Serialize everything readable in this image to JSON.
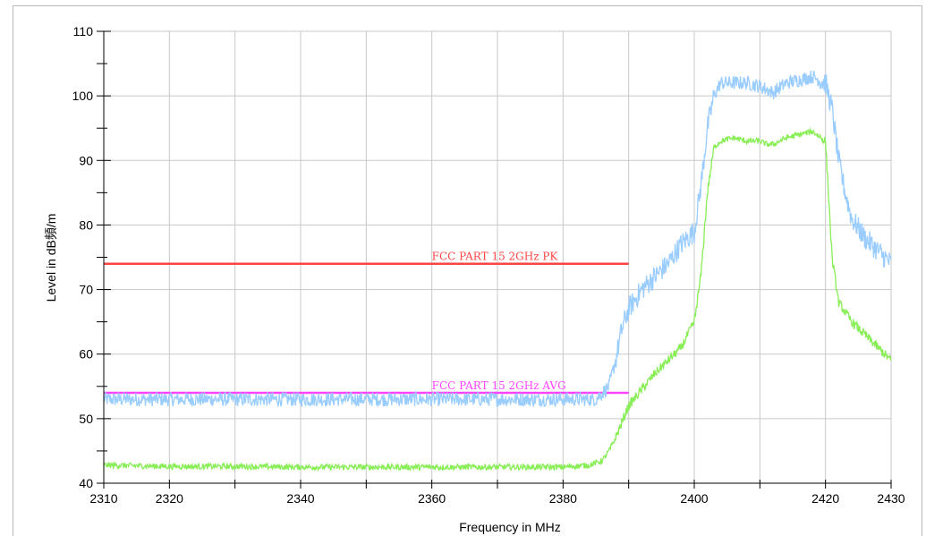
{
  "chart_data": {
    "type": "line",
    "title": "",
    "xlabel": "Frequency in MHz",
    "ylabel": "Level in dB頻/m",
    "xlim": [
      2310,
      2430
    ],
    "ylim": [
      40,
      110
    ],
    "x_tick_labels": [
      "2310",
      "2320",
      "2340",
      "2360",
      "2380",
      "2400",
      "2420",
      "2430"
    ],
    "y_tick_labels": [
      "40",
      "50",
      "60",
      "70",
      "80",
      "90",
      "100",
      "110"
    ],
    "grid": true,
    "legend": "none",
    "series": [
      {
        "color": "#99ccff",
        "x": [
          2310,
          2320,
          2330,
          2340,
          2350,
          2360,
          2370,
          2380,
          2385,
          2387,
          2388,
          2389,
          2390,
          2392,
          2394,
          2396,
          2398,
          2400,
          2401,
          2402,
          2403,
          2404,
          2406,
          2408,
          2410,
          2411,
          2412,
          2414,
          2416,
          2418,
          2420,
          2421,
          2422,
          2423,
          2424,
          2426,
          2428,
          2430
        ],
        "y": [
          53,
          53,
          53,
          53,
          53,
          53,
          53,
          53,
          53,
          55,
          59,
          64,
          67,
          70,
          72,
          74,
          77,
          79,
          86,
          95,
          100,
          102,
          102,
          102,
          101.5,
          101,
          100.5,
          102,
          102.5,
          103,
          102,
          98,
          90,
          85,
          81,
          78,
          76,
          74
        ]
      },
      {
        "color": "#88ee55",
        "x": [
          2310,
          2320,
          2330,
          2340,
          2350,
          2360,
          2370,
          2380,
          2384,
          2386,
          2387,
          2388,
          2389,
          2390,
          2392,
          2394,
          2396,
          2398,
          2400,
          2401,
          2402,
          2403,
          2404,
          2406,
          2408,
          2410,
          2411,
          2412,
          2414,
          2416,
          2418,
          2420,
          2421,
          2422,
          2424,
          2426,
          2428,
          2430
        ],
        "y": [
          42.8,
          42.6,
          42.6,
          42.5,
          42.5,
          42.5,
          42.5,
          42.5,
          42.8,
          43.5,
          45,
          47,
          49.5,
          52,
          54.5,
          57,
          59,
          61,
          65,
          72,
          85,
          92,
          93,
          93.5,
          93,
          93,
          92.5,
          92.5,
          93.5,
          94,
          94.5,
          93,
          75,
          68,
          65,
          63,
          61,
          59
        ]
      }
    ],
    "limit_lines": [
      {
        "label": "FCC PART 15 2GHz  PK",
        "value": 74,
        "x_start": 2310,
        "x_end": 2390,
        "color": "#ff4444"
      },
      {
        "label": "FCC PART 15 2GHz  AVG",
        "value": 54,
        "x_start": 2310,
        "x_end": 2390,
        "color": "#ff44ff"
      }
    ]
  }
}
